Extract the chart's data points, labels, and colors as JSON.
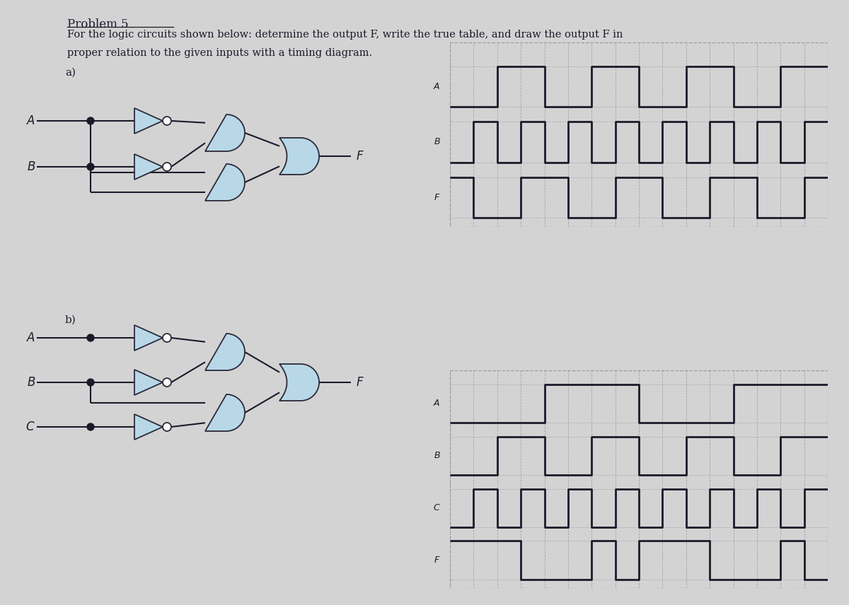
{
  "title": "Problem 5",
  "subtitle_line1": "For the logic circuits shown below: determine the output F, write the true table, and draw the output F in",
  "subtitle_line2": "proper relation to the given inputs with a timing diagram.",
  "part_a_label": "a)",
  "part_b_label": "b)",
  "bg_color": "#d3d3d3",
  "gate_fill": "#b8d8e8",
  "gate_edge": "#2a2a3a",
  "line_color": "#1a1a2a",
  "text_color": "#1a1a2a",
  "timing_grid_color": "#999999",
  "sig_a": [
    0,
    0,
    1,
    1,
    0,
    0,
    1,
    1,
    0,
    0,
    1,
    1,
    0,
    0,
    1,
    1
  ],
  "sig_b": [
    0,
    1,
    0,
    1,
    0,
    1,
    0,
    1,
    0,
    1,
    0,
    1,
    0,
    1,
    0,
    1
  ],
  "sig_a3": [
    0,
    0,
    0,
    0,
    1,
    1,
    1,
    1,
    0,
    0,
    0,
    0,
    1,
    1,
    1,
    1
  ],
  "sig_b3": [
    0,
    0,
    1,
    1,
    0,
    0,
    1,
    1,
    0,
    0,
    1,
    1,
    0,
    0,
    1,
    1
  ],
  "sig_c3": [
    0,
    1,
    0,
    1,
    0,
    1,
    0,
    1,
    0,
    1,
    0,
    1,
    0,
    1,
    0,
    1
  ]
}
